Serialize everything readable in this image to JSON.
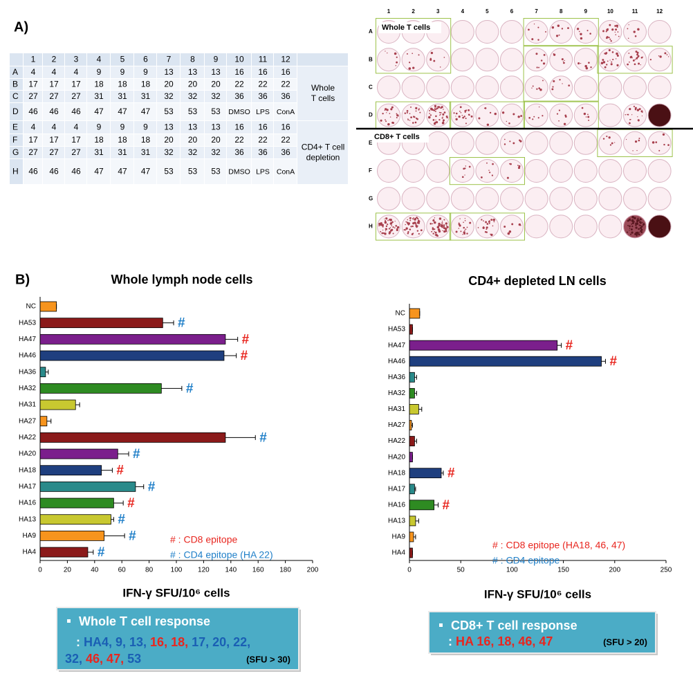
{
  "panel_labels": [
    "A)",
    "B)"
  ],
  "table": {
    "columns": [
      "1",
      "2",
      "3",
      "4",
      "5",
      "6",
      "7",
      "8",
      "9",
      "10",
      "11",
      "12"
    ],
    "rows": [
      {
        "label": "A",
        "cells": [
          4,
          4,
          4,
          9,
          9,
          9,
          13,
          13,
          13,
          16,
          16,
          16
        ]
      },
      {
        "label": "B",
        "cells": [
          17,
          17,
          17,
          18,
          18,
          18,
          20,
          20,
          20,
          22,
          22,
          22
        ]
      },
      {
        "label": "C",
        "cells": [
          27,
          27,
          27,
          31,
          31,
          31,
          32,
          32,
          32,
          36,
          36,
          36
        ]
      },
      {
        "label": "D",
        "cells": [
          46,
          46,
          46,
          47,
          47,
          47,
          53,
          53,
          53,
          "DMSO",
          "LPS",
          "ConA"
        ]
      },
      {
        "label": "E",
        "cells": [
          4,
          4,
          4,
          9,
          9,
          9,
          13,
          13,
          13,
          16,
          16,
          16
        ]
      },
      {
        "label": "F",
        "cells": [
          17,
          17,
          17,
          18,
          18,
          18,
          20,
          20,
          20,
          22,
          22,
          22
        ]
      },
      {
        "label": "G",
        "cells": [
          27,
          27,
          27,
          31,
          31,
          31,
          32,
          32,
          32,
          36,
          36,
          36
        ]
      },
      {
        "label": "H",
        "cells": [
          46,
          46,
          46,
          47,
          47,
          47,
          53,
          53,
          53,
          "DMSO",
          "LPS",
          "ConA"
        ]
      }
    ],
    "groups": [
      [
        "Whole",
        "T cells"
      ],
      [
        "CD4+ T cell",
        "depletion"
      ]
    ]
  },
  "plate": {
    "columns": [
      "1",
      "2",
      "3",
      "4",
      "5",
      "6",
      "7",
      "8",
      "9",
      "10",
      "11",
      "12"
    ],
    "rows": [
      "A",
      "B",
      "C",
      "D",
      "E",
      "F",
      "G",
      "H"
    ],
    "sections": [
      "Whole T cells",
      "CD8+ T cells"
    ]
  },
  "chart_data": [
    {
      "type": "bar",
      "title": "Whole lymph node cells",
      "x_label": "IFN-γ SFU/10⁶ cells",
      "categories": [
        "NC",
        "HA53",
        "HA47",
        "HA46",
        "HA36",
        "HA32",
        "HA31",
        "HA27",
        "HA22",
        "HA20",
        "HA18",
        "HA17",
        "HA16",
        "HA13",
        "HA9",
        "HA4"
      ],
      "values": [
        12,
        90,
        136,
        135,
        4,
        89,
        26,
        5,
        136,
        57,
        45,
        70,
        54,
        52,
        47,
        35
      ],
      "errors": [
        0,
        8,
        9,
        9,
        2,
        15,
        3,
        3,
        22,
        8,
        8,
        6,
        7,
        2,
        15,
        4
      ],
      "colors": [
        "#f7941d",
        "#8b1a1a",
        "#7b1f8c",
        "#1f3f7f",
        "#2a8a8a",
        "#2e8b22",
        "#c8c830",
        "#f7941d",
        "#8b1a1a",
        "#7b1f8c",
        "#1f3f7f",
        "#2a8a8a",
        "#2e8b22",
        "#c8c830",
        "#f7941d",
        "#8b1a1a"
      ],
      "markers": [
        null,
        "#",
        "#",
        "#",
        null,
        "#",
        null,
        null,
        "#",
        "#",
        "#",
        "#",
        "#",
        "#",
        "#",
        "#"
      ],
      "marker_colors": [
        null,
        "#1f7fc8",
        "#e8261f",
        "#e8261f",
        null,
        "#1f7fc8",
        null,
        null,
        "#1f7fc8",
        "#1f7fc8",
        "#e8261f",
        "#1f7fc8",
        "#e8261f",
        "#1f7fc8",
        "#1f7fc8",
        "#1f7fc8"
      ],
      "xlim": [
        0,
        200
      ],
      "xticks": [
        0,
        20,
        40,
        60,
        80,
        100,
        120,
        140,
        160,
        180,
        200
      ],
      "legend": [
        {
          "text": "# : CD8 epitope",
          "color": "#e8261f"
        },
        {
          "text": "# : CD4 epitope (HA 22)",
          "color": "#1f7fc8"
        }
      ]
    },
    {
      "type": "bar",
      "title": "CD4+ depleted LN cells",
      "x_label": "IFN-γ SFU/10⁶ cells",
      "categories": [
        "NC",
        "HA53",
        "HA47",
        "HA46",
        "HA36",
        "HA32",
        "HA31",
        "HA27",
        "HA22",
        "HA20",
        "HA18",
        "HA17",
        "HA16",
        "HA13",
        "HA9",
        "HA4"
      ],
      "values": [
        10,
        3,
        144,
        187,
        5,
        5,
        9,
        2,
        5,
        3,
        31,
        5,
        24,
        6,
        4,
        3
      ],
      "errors": [
        0,
        0,
        4,
        4,
        2,
        2,
        3,
        1,
        2,
        0,
        2,
        1,
        4,
        3,
        2,
        0
      ],
      "colors": [
        "#f7941d",
        "#8b1a1a",
        "#7b1f8c",
        "#1f3f7f",
        "#2a8a8a",
        "#2e8b22",
        "#c8c830",
        "#f7941d",
        "#8b1a1a",
        "#7b1f8c",
        "#1f3f7f",
        "#2a8a8a",
        "#2e8b22",
        "#c8c830",
        "#f7941d",
        "#8b1a1a"
      ],
      "markers": [
        null,
        null,
        "#",
        "#",
        null,
        null,
        null,
        null,
        null,
        null,
        "#",
        null,
        "#",
        null,
        null,
        null
      ],
      "marker_colors": [
        null,
        null,
        "#e8261f",
        "#e8261f",
        null,
        null,
        null,
        null,
        null,
        null,
        "#e8261f",
        null,
        "#e8261f",
        null,
        null,
        null
      ],
      "xlim": [
        0,
        250
      ],
      "xticks": [
        0,
        50,
        100,
        150,
        200,
        250
      ],
      "legend": [
        {
          "text": "# : CD8 epitope (HA18, 46, 47)",
          "color": "#e8261f"
        },
        {
          "text": "# : CD4 epitope",
          "color": "#1f7fc8"
        }
      ]
    }
  ],
  "response_boxes": [
    {
      "title": "Whole T cell response",
      "lines": [
        [
          {
            "text": ": ",
            "color": "#ffffff"
          },
          {
            "text": "HA4, 9, 13, ",
            "color": "#1a5fb4"
          },
          {
            "text": "16, 18, ",
            "color": "#e8261f"
          },
          {
            "text": "17, 20, 22,",
            "color": "#1a5fb4"
          }
        ],
        [
          {
            "text": "32, ",
            "color": "#1a5fb4"
          },
          {
            "text": "46, 47, ",
            "color": "#e8261f"
          },
          {
            "text": "53",
            "color": "#1a5fb4"
          }
        ]
      ],
      "note": "(SFU > 30)"
    },
    {
      "title": "CD8+ T cell response",
      "lines": [
        [
          {
            "text": ": ",
            "color": "#ffffff"
          },
          {
            "text": "HA 16, 18, 46, 47",
            "color": "#e8261f"
          }
        ]
      ],
      "note": "(SFU  > 20)"
    }
  ]
}
